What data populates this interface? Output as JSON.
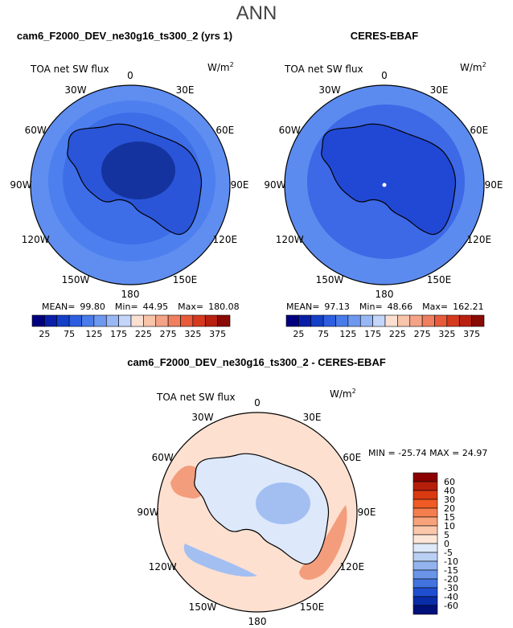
{
  "header": {
    "season": "ANN"
  },
  "panels": [
    {
      "title": "cam6_F2000_DEV_ne30g16_ts300_2 (yrs 1)",
      "variable": "TOA net SW flux",
      "units": "W/m",
      "units_sup": "2",
      "stats": {
        "mean_label": "MEAN=",
        "mean": "99.80",
        "min_label": "Min=",
        "min": "44.95",
        "max_label": "Max=",
        "max": "180.08"
      }
    },
    {
      "title": "CERES-EBAF",
      "variable": "TOA net SW flux",
      "units": "W/m",
      "units_sup": "2",
      "stats": {
        "mean_label": "MEAN=",
        "mean": "97.13",
        "min_label": "Min=",
        "min": "48.66",
        "max_label": "Max=",
        "max": "162.21"
      }
    }
  ],
  "diff": {
    "title": "cam6_F2000_DEV_ne30g16_ts300_2 - CERES-EBAF",
    "variable": "TOA net SW flux",
    "units": "W/m",
    "units_sup": "2",
    "stats_text": "MIN = -25.74 MAX =  24.97"
  },
  "lon_labels": [
    "0",
    "30E",
    "60E",
    "90E",
    "120E",
    "150E",
    "180",
    "150W",
    "120W",
    "90W",
    "60W",
    "30W"
  ],
  "abs_colorbar": {
    "labels": [
      "25",
      "75",
      "125",
      "175",
      "225",
      "275",
      "325",
      "375"
    ],
    "colors": [
      "#00007f",
      "#0a1fa8",
      "#1440c8",
      "#2e5ee0",
      "#4a7bea",
      "#6e98f0",
      "#98b7f5",
      "#c3d6fa",
      "#fbe0d2",
      "#f8c4aa",
      "#f4a386",
      "#ef7f5e",
      "#e85a3a",
      "#d63a1e",
      "#b82010",
      "#8a0a04"
    ]
  },
  "diff_colorbar": {
    "labels": [
      "60",
      "40",
      "30",
      "20",
      "15",
      "10",
      "5",
      "0",
      "-5",
      "-10",
      "-15",
      "-20",
      "-30",
      "-40",
      "-60"
    ],
    "colors": [
      "#8b0000",
      "#b51f0a",
      "#d93a12",
      "#f05a25",
      "#f57e4e",
      "#f8a27c",
      "#fbc7ab",
      "#fde6d8",
      "#dde9f8",
      "#b9cff3",
      "#92b3ee",
      "#6a94e8",
      "#4273df",
      "#1f4fd0",
      "#0a2ca8",
      "#00107a"
    ]
  },
  "colors": {
    "model_bg": "#5f8ef0",
    "ocean_mid": "#4d7fef",
    "ocean_inner": "#3e6de8",
    "land_model": "#2a55d8",
    "land_model_core": "#14339e",
    "ceres_ocean_outer": "#5c8bef",
    "ceres_ocean_inner": "#3d68e6",
    "ceres_land": "#2148d4",
    "diff_ocean": "#fde0d0",
    "diff_ice": "#dde8fb",
    "diff_warm": "#f39d7c",
    "diff_cool": "#a3bff2"
  }
}
